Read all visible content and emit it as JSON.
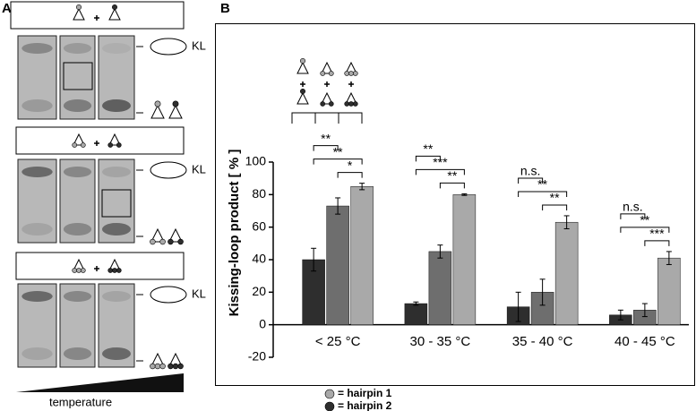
{
  "panel_labels": [
    "A",
    "B"
  ],
  "panel_a": {
    "kl_labels": [
      "KL",
      "KL",
      "KL"
    ],
    "gradient_label": "temperature"
  },
  "chart_data": {
    "type": "bar",
    "ylabel": "Kissing-loop product [ % ]",
    "categories": [
      "< 25 °C",
      "30 - 35 °C",
      "35 - 40 °C",
      "40 - 45 °C"
    ],
    "series": [
      {
        "color": "#2e2e2e",
        "values": [
          40,
          13,
          11,
          6
        ],
        "errors": [
          7,
          1,
          9,
          3
        ]
      },
      {
        "color": "#6e6e6e",
        "values": [
          73,
          45,
          20,
          9
        ],
        "errors": [
          5,
          4,
          8,
          4
        ]
      },
      {
        "color": "#a9a9a9",
        "values": [
          85,
          80,
          63,
          41
        ],
        "errors": [
          2,
          0.5,
          4,
          4
        ]
      }
    ],
    "significance": [
      [
        "**",
        "**",
        "*"
      ],
      [
        "**",
        "***",
        "**"
      ],
      [
        "n.s.",
        "**",
        "**"
      ],
      [
        "n.s.",
        "**",
        "***"
      ]
    ],
    "ylim": [
      -20,
      100
    ],
    "yticks": [
      -20,
      0,
      20,
      40,
      60,
      80,
      100
    ],
    "legend_items": [
      {
        "label": "= hairpin 1",
        "color": "#a9a9a9"
      },
      {
        "label": "= hairpin 2",
        "color": "#2e2e2e"
      }
    ]
  }
}
